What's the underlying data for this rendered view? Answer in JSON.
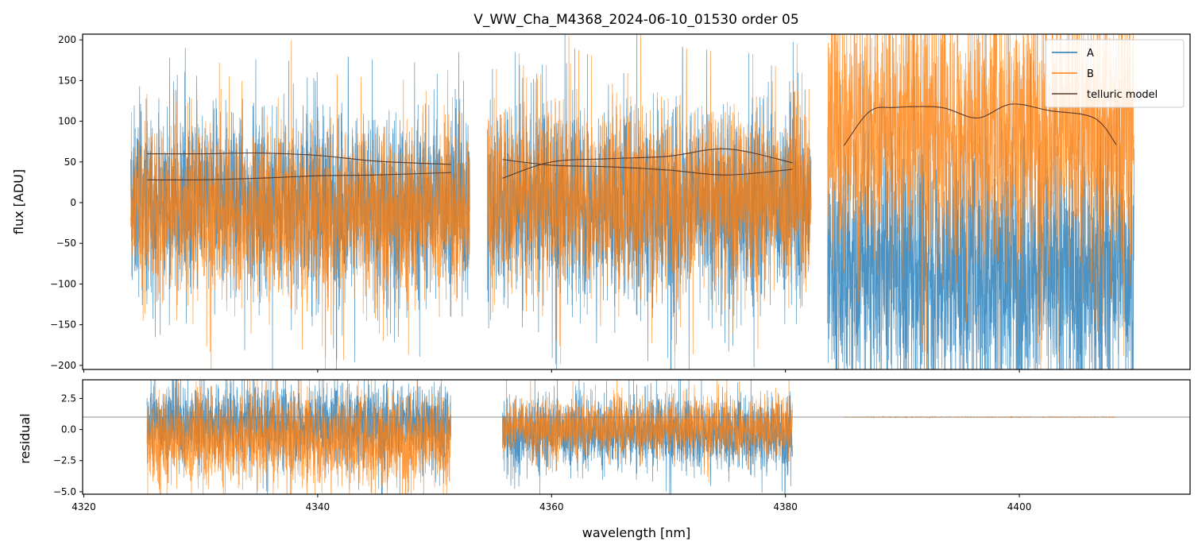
{
  "chart_data": {
    "type": "line",
    "title": "V_WW_Cha_M4368_2024-06-10_01530  order 05",
    "xlabel": "wavelength [nm]",
    "xlim": [
      4319.9,
      4414.6
    ],
    "x_ticks": [
      4320,
      4340,
      4360,
      4380,
      4400
    ],
    "legend": {
      "position": "top-right",
      "entries": [
        "A",
        "B",
        "telluric model"
      ]
    },
    "colors": {
      "A": "#1f77b4",
      "B": "#ff7f0e",
      "telluric": "#5a3a2a",
      "reference": "#808080"
    },
    "panels": [
      {
        "name": "flux",
        "ylabel": "flux [ADU]",
        "ylim": [
          -205,
          207
        ],
        "y_ticks": [
          200,
          150,
          100,
          50,
          0,
          -50,
          -100,
          -150,
          -200
        ],
        "segments": [
          {
            "x_range": [
              4324.0,
              4353.0
            ],
            "A": {
              "center": 0,
              "spread": 75
            },
            "B": {
              "center": -10,
              "spread": 70
            }
          },
          {
            "x_range": [
              4354.5,
              4382.2
            ],
            "A": {
              "center": 0,
              "spread": 80
            },
            "B": {
              "center": 10,
              "spread": 75
            }
          },
          {
            "x_range": [
              4383.6,
              4409.8
            ],
            "A": {
              "center": -80,
              "spread": 110
            },
            "B": {
              "center": 90,
              "spread": 110
            }
          }
        ],
        "telluric_model": [
          {
            "x": [
              4325.4,
              4330,
              4335,
              4340,
              4345,
              4351.4
            ],
            "y": [
              60,
              60,
              61,
              58,
              51,
              47
            ]
          },
          {
            "x": [
              4325.4,
              4330,
              4335,
              4340,
              4345,
              4351.4
            ],
            "y": [
              28,
              28,
              30,
              33,
              34,
              37
            ]
          },
          {
            "x": [
              4355.8,
              4360,
              4365,
              4370,
              4375,
              4380.6
            ],
            "y": [
              53,
              46,
              44,
              40,
              34,
              41
            ]
          },
          {
            "x": [
              4355.8,
              4360,
              4365,
              4370,
              4375,
              4380.6
            ],
            "y": [
              30,
              50,
              54,
              57,
              66,
              49
            ]
          },
          {
            "x": [
              4385.0,
              4387.2,
              4389.4,
              4393.3,
              4396.4,
              4399.3,
              4402.6,
              4406.4,
              4408.3
            ],
            "y": [
              70,
              112,
              117,
              117,
              104,
              121,
              113,
              104,
              71
            ]
          }
        ]
      },
      {
        "name": "residual",
        "ylabel": "residual",
        "ylim": [
          -5.2,
          4.0
        ],
        "y_ticks": [
          2.5,
          0.0,
          -2.5,
          -5.0
        ],
        "y_tick_labels": [
          "2.5",
          "0.0",
          "−2.5",
          "−5.0"
        ],
        "reference_line": 1.0,
        "segments": [
          {
            "x_range": [
              4325.4,
              4351.4
            ],
            "A": {
              "center": 0.5,
              "spread": 2.2
            },
            "B": {
              "center": -0.8,
              "spread": 2.5
            }
          },
          {
            "x_range": [
              4355.8,
              4380.6
            ],
            "A": {
              "center": -0.2,
              "spread": 2.0
            },
            "B": {
              "center": 0.2,
              "spread": 1.6
            }
          },
          {
            "x_range": [
              4385.0,
              4408.3
            ],
            "A": {
              "center": 1.0,
              "spread": 0.0
            },
            "B": {
              "center": 1.0,
              "spread": 0.02
            }
          }
        ]
      }
    ]
  }
}
